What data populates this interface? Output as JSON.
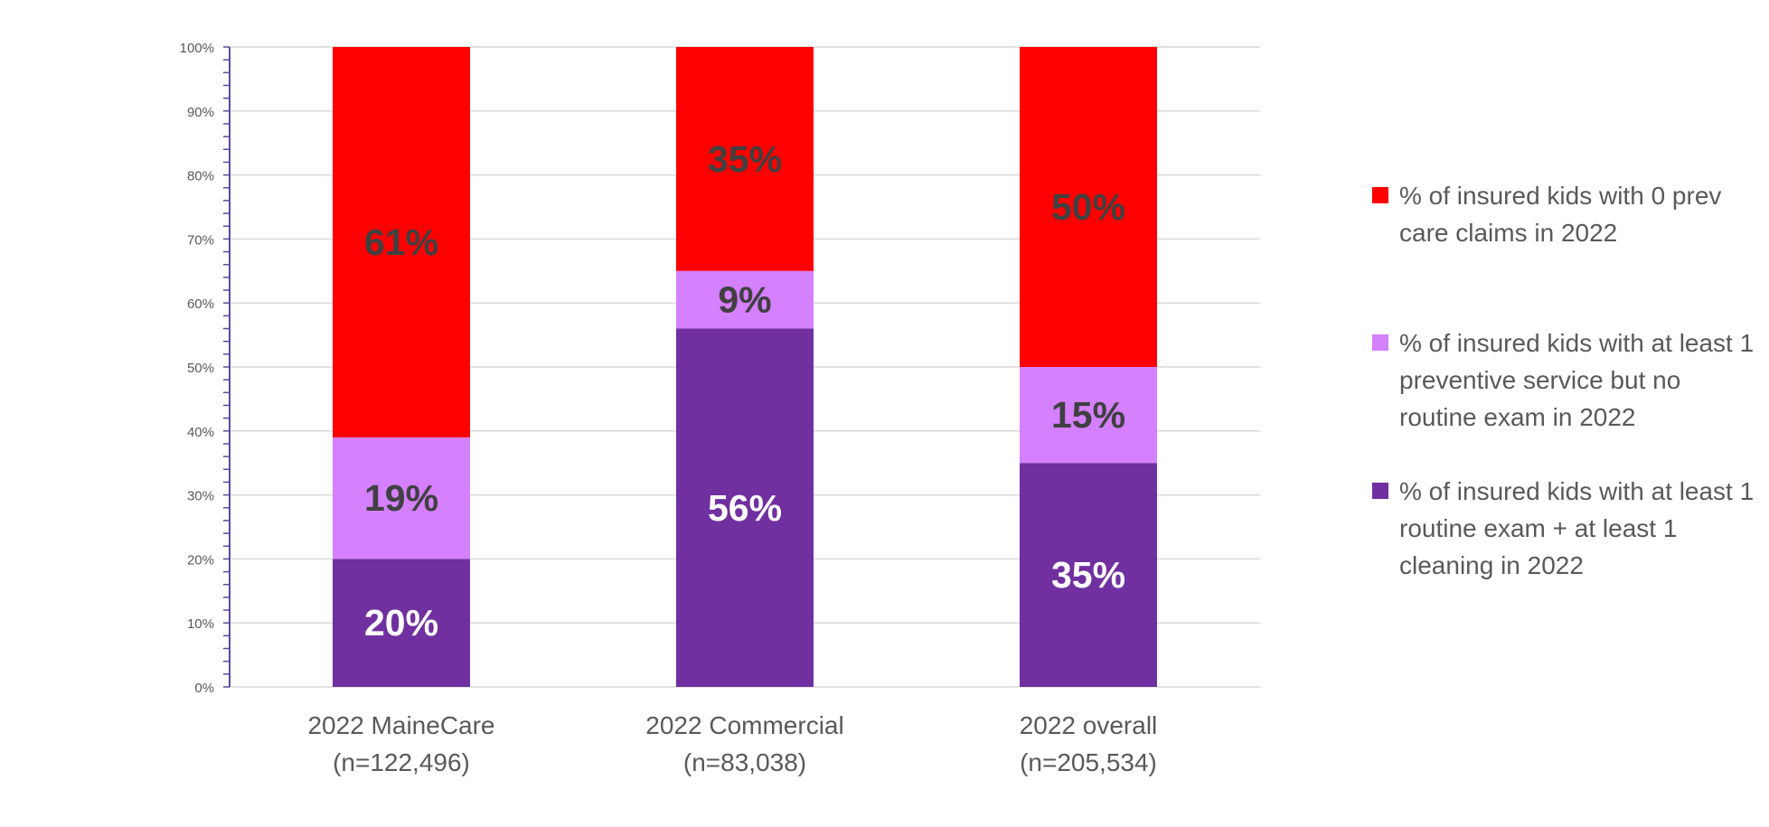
{
  "chart_data": {
    "type": "bar",
    "stacked": true,
    "categories": [
      {
        "line1": "2022 MaineCare",
        "line2": "(n=122,496)"
      },
      {
        "line1": "2022 Commercial",
        "line2": "(n=83,038)"
      },
      {
        "line1": "2022 overall",
        "line2": "(n=205,534)"
      }
    ],
    "series": [
      {
        "name": "% of insured kids with at least 1 routine exam + at least 1 cleaning in 2022",
        "color": "#7030a0",
        "label_color": "#ffffff",
        "values": [
          20,
          56,
          35
        ],
        "labels": [
          "20%",
          "56%",
          "35%"
        ]
      },
      {
        "name": "% of insured kids with at least 1 preventive service but no routine exam in 2022",
        "color": "#d580ff",
        "label_color": "#404040",
        "values": [
          19,
          9,
          15
        ],
        "labels": [
          "19%",
          "9%",
          "15%"
        ]
      },
      {
        "name": "% of insured kids with 0 prev care claims in 2022",
        "color": "#ff0000",
        "label_color": "#404040",
        "values": [
          61,
          35,
          50
        ],
        "labels": [
          "61%",
          "35%",
          "50%"
        ]
      }
    ],
    "ylim": [
      0,
      100
    ],
    "yticks": [
      "0%",
      "10%",
      "20%",
      "30%",
      "40%",
      "50%",
      "60%",
      "70%",
      "80%",
      "90%",
      "100%"
    ],
    "grid": true,
    "legend_position": "right",
    "legend_order": [
      2,
      1,
      0
    ]
  }
}
